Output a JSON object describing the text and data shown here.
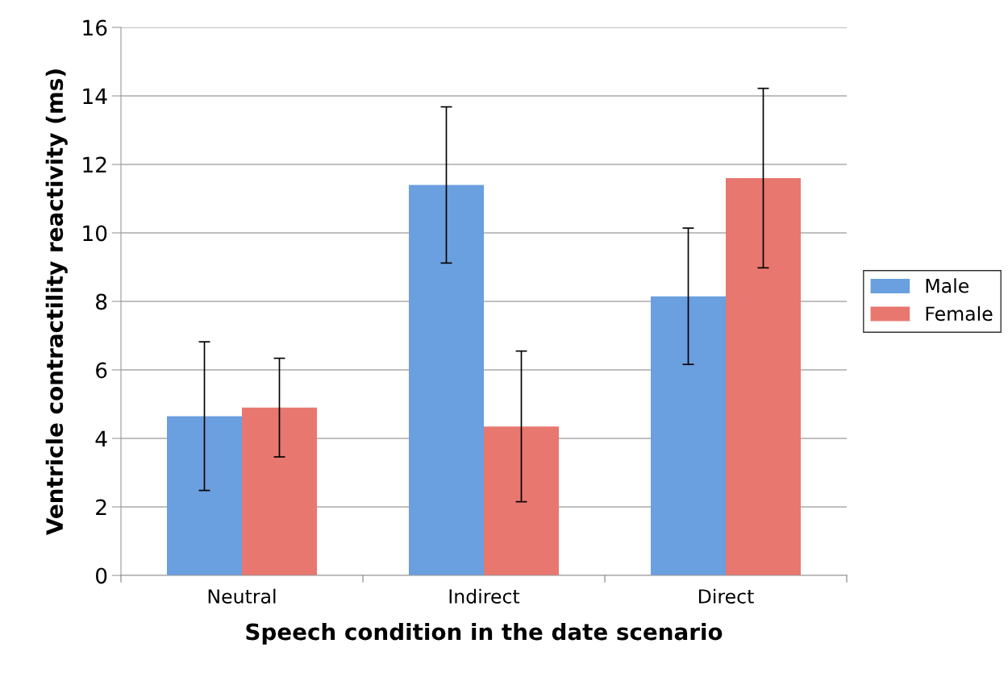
{
  "chart_data": {
    "type": "bar",
    "xlabel": "Speech condition in the date scenario",
    "ylabel": "Ventricle contractility reactivity (ms)",
    "categories": [
      "Neutral",
      "Indirect",
      "Direct"
    ],
    "series": [
      {
        "name": "Male",
        "color": "#6a9fe0",
        "values": [
          4.65,
          11.4,
          8.15
        ],
        "errors": [
          2.17,
          2.28,
          1.99
        ]
      },
      {
        "name": "Female",
        "color": "#e8776f",
        "values": [
          4.9,
          4.35,
          11.6
        ],
        "errors": [
          1.44,
          2.2,
          2.62
        ]
      }
    ],
    "ylim": [
      0,
      16
    ],
    "yticks": [
      0,
      2,
      4,
      6,
      8,
      10,
      12,
      14,
      16
    ],
    "grid": "y",
    "legend": "right"
  }
}
